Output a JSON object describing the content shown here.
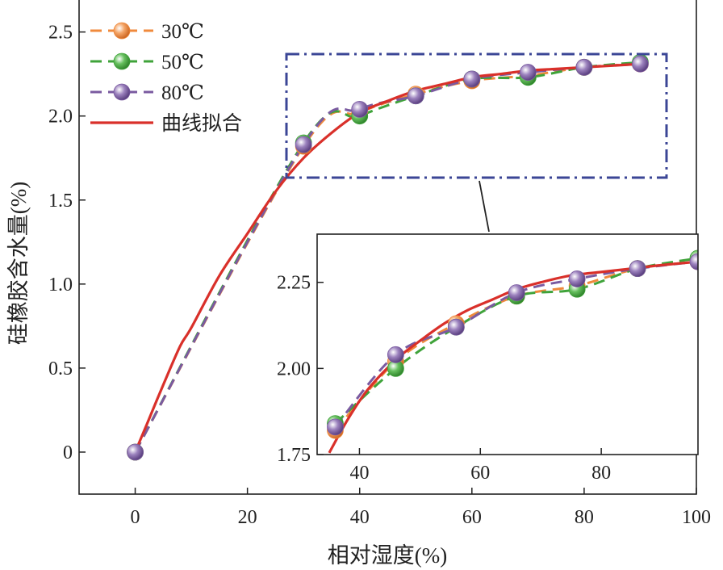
{
  "chart_data": [
    {
      "type": "line",
      "xlabel": "相对湿度(%)",
      "ylabel": "硅橡胶含水量(%)",
      "xlim": [
        -10,
        100
      ],
      "ylim": [
        -0.25,
        2.7
      ],
      "x_ticks": [
        "0",
        "20",
        "40",
        "60",
        "80",
        "100"
      ],
      "y_ticks": [
        "0",
        "0.5",
        "1.0",
        "1.5",
        "2.0",
        "2.5"
      ],
      "x_tick_values": [
        0,
        20,
        40,
        60,
        80,
        100
      ],
      "y_tick_values": [
        0,
        0.5,
        1.0,
        1.5,
        2.0,
        2.5
      ],
      "legend_position": "top-left",
      "series": [
        {
          "name": "30℃",
          "color": "#F08A3C",
          "style": "dashed-marker",
          "x": [
            0,
            30,
            40,
            50,
            60,
            70,
            80,
            90
          ],
          "y": [
            0,
            1.82,
            2.02,
            2.13,
            2.21,
            2.24,
            2.29,
            2.31
          ]
        },
        {
          "name": "50℃",
          "color": "#3FA33A",
          "style": "dashed-marker",
          "x": [
            0,
            30,
            40,
            50,
            60,
            70,
            80,
            90
          ],
          "y": [
            0,
            1.84,
            2.0,
            2.12,
            2.22,
            2.23,
            2.29,
            2.32
          ]
        },
        {
          "name": "80℃",
          "color": "#7A5AA0",
          "style": "dashed-marker",
          "x": [
            0,
            30,
            40,
            50,
            60,
            70,
            80,
            90
          ],
          "y": [
            0,
            1.83,
            2.04,
            2.12,
            2.22,
            2.26,
            2.29,
            2.31
          ]
        },
        {
          "name": "曲线拟合",
          "color": "#D9302A",
          "style": "solid-curve",
          "x": [
            0,
            2,
            5,
            8,
            10,
            15,
            20,
            25,
            30,
            35,
            40,
            45,
            50,
            55,
            60,
            65,
            70,
            75,
            80,
            85,
            90
          ],
          "y": [
            0,
            0.16,
            0.4,
            0.63,
            0.74,
            1.05,
            1.3,
            1.55,
            1.75,
            1.9,
            2.02,
            2.09,
            2.15,
            2.19,
            2.23,
            2.25,
            2.27,
            2.28,
            2.29,
            2.3,
            2.31
          ]
        }
      ]
    },
    {
      "type": "line",
      "xlim": [
        33,
        96
      ],
      "ylim": [
        1.75,
        2.39
      ],
      "x_ticks": [
        "40",
        "60",
        "80"
      ],
      "y_ticks": [
        "1.75",
        "2.00",
        "2.25"
      ],
      "x_tick_values": [
        40,
        60,
        80
      ],
      "y_tick_values": [
        1.75,
        2.0,
        2.25
      ],
      "series": [
        {
          "name": "30℃",
          "color": "#F08A3C",
          "style": "dashed-marker",
          "x": [
            36,
            46,
            56,
            66,
            76,
            86,
            96
          ],
          "y": [
            1.82,
            2.02,
            2.13,
            2.21,
            2.24,
            2.29,
            2.31
          ]
        },
        {
          "name": "50℃",
          "color": "#3FA33A",
          "style": "dashed-marker",
          "x": [
            36,
            46,
            56,
            66,
            76,
            86,
            96
          ],
          "y": [
            1.84,
            2.0,
            2.12,
            2.21,
            2.23,
            2.29,
            2.32
          ]
        },
        {
          "name": "80℃",
          "color": "#7A5AA0",
          "style": "dashed-marker",
          "x": [
            36,
            46,
            56,
            66,
            76,
            86,
            96
          ],
          "y": [
            1.83,
            2.04,
            2.12,
            2.22,
            2.26,
            2.29,
            2.31
          ]
        },
        {
          "name": "曲线拟合",
          "color": "#D9302A",
          "style": "solid-curve",
          "x": [
            35,
            38,
            41,
            44,
            47,
            50,
            54,
            58,
            62,
            66,
            70,
            75,
            80,
            85,
            90,
            96
          ],
          "y": [
            1.755,
            1.85,
            1.93,
            1.99,
            2.04,
            2.08,
            2.13,
            2.17,
            2.2,
            2.23,
            2.25,
            2.27,
            2.28,
            2.29,
            2.3,
            2.31
          ]
        }
      ]
    }
  ]
}
